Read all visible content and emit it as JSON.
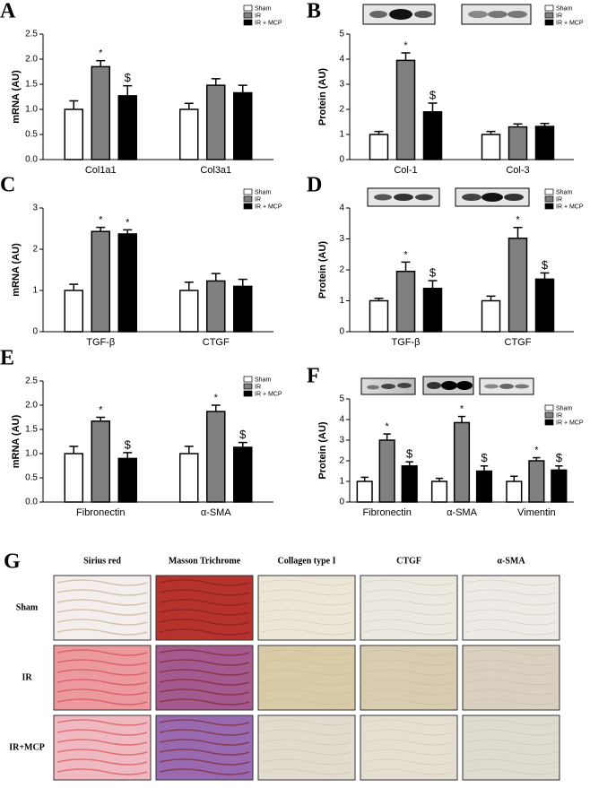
{
  "chart_data": [
    {
      "type": "bar",
      "panel": "A",
      "ylabel": "mRNA (AU)",
      "categories": [
        "Col1a1",
        "Col3a1"
      ],
      "ylim": [
        0,
        2.5
      ],
      "yticks": [
        {
          "value": 0,
          "label": "0.0"
        },
        0.5,
        {
          "value": 1,
          "label": "1.0"
        },
        1.5,
        {
          "value": 2,
          "label": "2.0"
        },
        2.5
      ],
      "series": [
        {
          "name": "Sham",
          "color": "#ffffff",
          "values": [
            1.0,
            1.0
          ],
          "errors": [
            0.17,
            0.12
          ],
          "markers": [
            null,
            null
          ]
        },
        {
          "name": "IR",
          "color": "#808080",
          "values": [
            1.85,
            1.48
          ],
          "errors": [
            0.12,
            0.13
          ],
          "markers": [
            "*",
            null
          ]
        },
        {
          "name": "IR + MCP",
          "color": "#000000",
          "values": [
            1.27,
            1.33
          ],
          "errors": [
            0.2,
            0.15
          ],
          "markers": [
            "$",
            null
          ]
        }
      ]
    },
    {
      "type": "bar",
      "panel": "B",
      "ylabel": "Protein (AU)",
      "categories": [
        "Col-1",
        "Col-3"
      ],
      "ylim": [
        0,
        5
      ],
      "yticks": [
        0,
        1,
        2,
        3,
        4,
        5
      ],
      "series": [
        {
          "name": "Sham",
          "color": "#ffffff",
          "values": [
            1.0,
            1.0
          ],
          "errors": [
            0.12,
            0.12
          ],
          "markers": [
            null,
            null
          ]
        },
        {
          "name": "IR",
          "color": "#808080",
          "values": [
            3.95,
            1.3
          ],
          "errors": [
            0.3,
            0.12
          ],
          "markers": [
            "*",
            null
          ]
        },
        {
          "name": "IR + MCP",
          "color": "#000000",
          "values": [
            1.9,
            1.32
          ],
          "errors": [
            0.35,
            0.12
          ],
          "markers": [
            "$",
            null
          ]
        }
      ]
    },
    {
      "type": "bar",
      "panel": "C",
      "ylabel": "mRNA (AU)",
      "categories": [
        "TGF-β",
        "CTGF"
      ],
      "ylim": [
        0,
        3
      ],
      "yticks": [
        0,
        1,
        2,
        3
      ],
      "series": [
        {
          "name": "Sham",
          "color": "#ffffff",
          "values": [
            1.0,
            1.0
          ],
          "errors": [
            0.15,
            0.2
          ],
          "markers": [
            null,
            null
          ]
        },
        {
          "name": "IR",
          "color": "#808080",
          "values": [
            2.43,
            1.23
          ],
          "errors": [
            0.1,
            0.18
          ],
          "markers": [
            "*",
            null
          ]
        },
        {
          "name": "IR + MCP",
          "color": "#000000",
          "values": [
            2.37,
            1.1
          ],
          "errors": [
            0.1,
            0.17
          ],
          "markers": [
            "*",
            null
          ]
        }
      ]
    },
    {
      "type": "bar",
      "panel": "D",
      "ylabel": "Protein (AU)",
      "categories": [
        "TGF-β",
        "CTGF"
      ],
      "ylim": [
        0,
        4
      ],
      "yticks": [
        0,
        1,
        2,
        3,
        4
      ],
      "series": [
        {
          "name": "Sham",
          "color": "#ffffff",
          "values": [
            1.0,
            1.0
          ],
          "errors": [
            0.08,
            0.15
          ],
          "markers": [
            null,
            null
          ]
        },
        {
          "name": "IR",
          "color": "#808080",
          "values": [
            1.95,
            3.02
          ],
          "errors": [
            0.3,
            0.35
          ],
          "markers": [
            "*",
            "*"
          ]
        },
        {
          "name": "IR + MCP",
          "color": "#000000",
          "values": [
            1.4,
            1.7
          ],
          "errors": [
            0.25,
            0.2
          ],
          "markers": [
            "$",
            "$"
          ]
        }
      ]
    },
    {
      "type": "bar",
      "panel": "E",
      "ylabel": "mRNA (AU)",
      "categories": [
        "Fibronectin",
        "α-SMA"
      ],
      "ylim": [
        0,
        2.5
      ],
      "yticks": [
        {
          "value": 0,
          "label": "0.0"
        },
        0.5,
        {
          "value": 1,
          "label": "1.0"
        },
        1.5,
        {
          "value": 2,
          "label": "2.0"
        },
        2.5
      ],
      "series": [
        {
          "name": "Sham",
          "color": "#ffffff",
          "values": [
            1.0,
            1.0
          ],
          "errors": [
            0.15,
            0.15
          ],
          "markers": [
            null,
            null
          ]
        },
        {
          "name": "IR",
          "color": "#808080",
          "values": [
            1.67,
            1.87
          ],
          "errors": [
            0.08,
            0.13
          ],
          "markers": [
            "*",
            "*"
          ]
        },
        {
          "name": "IR + MCP",
          "color": "#000000",
          "values": [
            0.9,
            1.13
          ],
          "errors": [
            0.12,
            0.1
          ],
          "markers": [
            "$",
            "$"
          ]
        }
      ]
    },
    {
      "type": "bar",
      "panel": "F",
      "ylabel": "Protein (AU)",
      "categories": [
        "Fibronectin",
        "α-SMA",
        "Vimentin"
      ],
      "ylim": [
        0,
        5
      ],
      "yticks": [
        0,
        1,
        2,
        3,
        4,
        5
      ],
      "series": [
        {
          "name": "Sham",
          "color": "#ffffff",
          "values": [
            1.0,
            1.0,
            1.0
          ],
          "errors": [
            0.2,
            0.15,
            0.25
          ],
          "markers": [
            null,
            null,
            null
          ]
        },
        {
          "name": "IR",
          "color": "#808080",
          "values": [
            3.0,
            3.85,
            2.0
          ],
          "errors": [
            0.3,
            0.3,
            0.15
          ],
          "markers": [
            "*",
            "*",
            "*"
          ]
        },
        {
          "name": "IR + MCP",
          "color": "#000000",
          "values": [
            1.75,
            1.5,
            1.55
          ],
          "errors": [
            0.2,
            0.25,
            0.2
          ],
          "markers": [
            "$",
            "$",
            "$"
          ]
        }
      ]
    }
  ],
  "micrographs": {
    "panel": "G",
    "columns": [
      "Sirius red",
      "Masson Trichrome",
      "Collagen type I",
      "CTGF",
      "α-SMA"
    ],
    "rows": [
      "Sham",
      "IR",
      "IR+MCP"
    ]
  }
}
